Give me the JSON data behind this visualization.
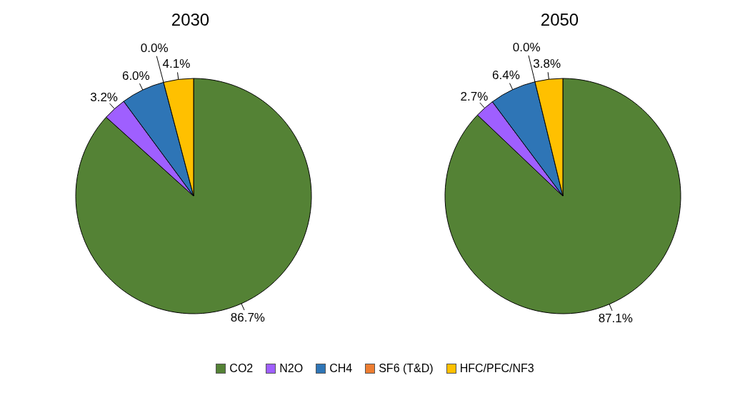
{
  "chart_data": [
    {
      "type": "pie",
      "title": "2030",
      "categories": [
        "CO2",
        "N2O",
        "CH4",
        "SF6 (T&D)",
        "HFC/PFC/NF3"
      ],
      "values": [
        86.7,
        3.2,
        6.0,
        0.0,
        4.1
      ],
      "value_labels": [
        "86.7%",
        "3.2%",
        "6.0%",
        "0.0%",
        "4.1%"
      ],
      "colors": [
        "#548235",
        "#9f5fff",
        "#2e75b6",
        "#ed7d31",
        "#ffc000"
      ],
      "legend": "bottom"
    },
    {
      "type": "pie",
      "title": "2050",
      "categories": [
        null,
        null,
        null,
        null,
        null
      ],
      "values": [
        87.1,
        2.7,
        6.4,
        0.0,
        3.8
      ],
      "value_labels": [
        "87.1%",
        "2.7%",
        "6.4%",
        "0.0%",
        "3.8%"
      ],
      "colors": [
        "#548235",
        "#9f5fff",
        "#2e75b6",
        "#ed7d31",
        "#ffc000"
      ]
    }
  ]
}
